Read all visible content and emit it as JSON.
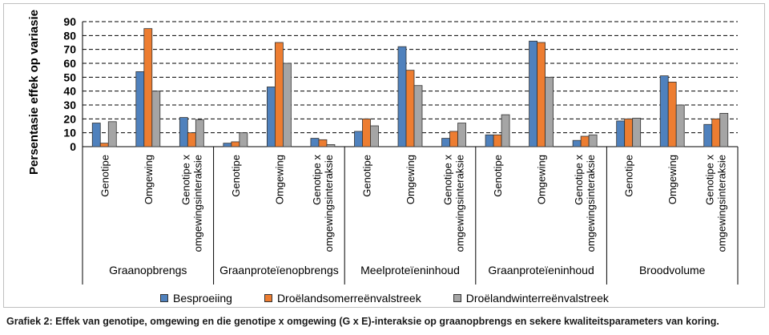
{
  "chart_data": {
    "type": "bar",
    "ylabel": "Persentasie effek op variasie",
    "xlabel": "",
    "ylim": [
      0,
      90
    ],
    "yticks": [
      0,
      10,
      20,
      30,
      40,
      50,
      60,
      70,
      80,
      90
    ],
    "grid": true,
    "legend_position": "bottom",
    "groups": [
      {
        "label": "Graanopbrengs",
        "categories": [
          "Genotipe",
          "Omgewing",
          "Genotipe x omgewingsinteraksie"
        ]
      },
      {
        "label": "Graanproteïenopbrengs",
        "categories": [
          "Genotipe",
          "Omgewing",
          "Genotipe x omgewingsinteraksie"
        ]
      },
      {
        "label": "Meelproteïeninhoud",
        "categories": [
          "Genotipe",
          "Omgewing",
          "Genotipe x omgewingsinteraksie"
        ]
      },
      {
        "label": "Graanproteïeninhoud",
        "categories": [
          "Genotipe",
          "Omgewing",
          "Genotipe x omgewingsinteraksie"
        ]
      },
      {
        "label": "Broodvolume",
        "categories": [
          "Genotipe",
          "Omgewing",
          "Genotipe x omgewingsinteraksie"
        ]
      }
    ],
    "series": [
      {
        "name": "Besproeiing",
        "color": "#4f81bd",
        "values": [
          17,
          54,
          21,
          2.5,
          43,
          6,
          11,
          72,
          6,
          8.5,
          76,
          4.5,
          18.5,
          51,
          16
        ]
      },
      {
        "name": "Droëlandsomerreënvalstreek",
        "color": "#ed7d31",
        "values": [
          2.5,
          85,
          10,
          3.5,
          75,
          5,
          20,
          55,
          11,
          8.5,
          75,
          7.5,
          20,
          46.5,
          20
        ]
      },
      {
        "name": "Droëlandwinterreënvalstreek",
        "color": "#a5a5a5",
        "values": [
          18,
          40,
          19.5,
          10,
          60,
          1.5,
          15,
          44,
          17,
          23,
          50,
          8.5,
          20.5,
          30,
          24
        ]
      }
    ]
  },
  "caption": "Grafiek 2: Effek van genotipe, omgewing en die genotipe x omgewing (G x E)-interaksie op graanopbrengs en sekere kwaliteitsparameters van koring."
}
